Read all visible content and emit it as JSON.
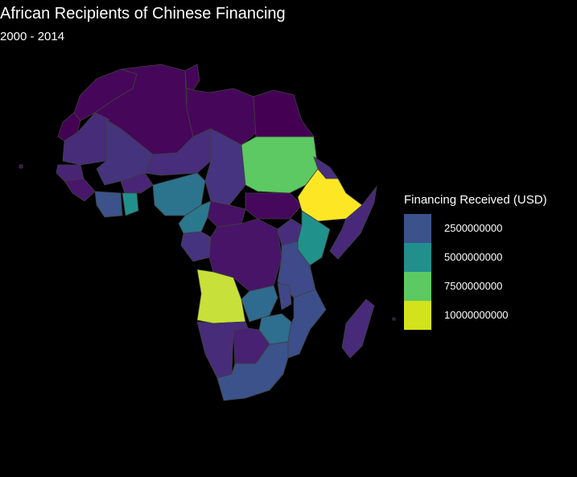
{
  "title": "African Recipients of Chinese Financing",
  "subtitle": "2000 - 2014",
  "legend": {
    "title": "Financing Received (USD)",
    "items": [
      {
        "label": "2500000000",
        "color": "#3b528b"
      },
      {
        "label": "5000000000",
        "color": "#21908d"
      },
      {
        "label": "7500000000",
        "color": "#5dc963"
      },
      {
        "label": "10000000000",
        "color": "#d2e21b"
      }
    ]
  },
  "colors": {
    "background": "#000000",
    "low": "#440154",
    "mid_low": "#472c7a",
    "mid": "#3b528b",
    "teal": "#21908d",
    "green": "#5dc963",
    "lime": "#c8e03a",
    "yellow": "#fde725",
    "border": "#3f3f3f"
  }
}
